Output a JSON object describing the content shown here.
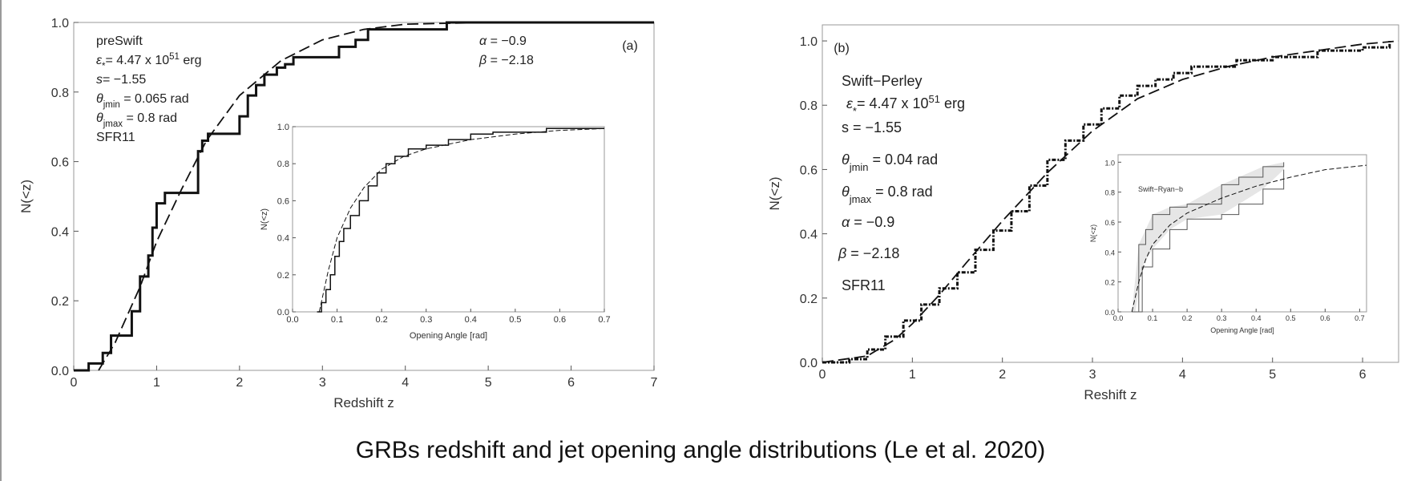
{
  "caption": "GRBs redshift and jet opening angle distributions (Le et al. 2020)",
  "colors": {
    "line": "#111111",
    "frame": "#9a9a9a",
    "band": "#e6e6e6"
  },
  "chart_data": [
    {
      "id": "panel-a",
      "type": "line",
      "panel_label": "(a)",
      "xlabel": "Redshift z",
      "ylabel": "N(<z)",
      "xlim": [
        0,
        7
      ],
      "ylim": [
        0,
        1
      ],
      "xticks": [
        "0",
        "1",
        "2",
        "3",
        "4",
        "5",
        "6",
        "7"
      ],
      "yticks": [
        "0.0",
        "0.2",
        "0.4",
        "0.6",
        "0.8",
        "1.0"
      ],
      "annotations_left": [
        "preSwift",
        "ε*= 4.47 x 10^51 erg",
        "s= −1.55",
        "θjmin = 0.065 rad",
        "θjmax = 0.8 rad",
        "SFR11"
      ],
      "annotations_right": [
        "α = −0.9",
        "β = −2.18"
      ],
      "series": [
        {
          "style": "solid-step",
          "x": [
            0.0,
            0.18,
            0.35,
            0.45,
            0.55,
            0.7,
            0.8,
            0.9,
            0.95,
            1.0,
            1.1,
            1.2,
            1.3,
            1.5,
            1.55,
            1.62,
            1.8,
            2.0,
            2.1,
            2.2,
            2.3,
            2.45,
            2.55,
            2.65,
            3.0,
            3.2,
            3.4,
            3.55,
            4.0,
            4.5,
            4.5,
            7.0
          ],
          "y": [
            0.0,
            0.02,
            0.05,
            0.1,
            0.1,
            0.17,
            0.27,
            0.33,
            0.41,
            0.48,
            0.51,
            0.51,
            0.51,
            0.63,
            0.66,
            0.68,
            0.68,
            0.73,
            0.79,
            0.82,
            0.85,
            0.87,
            0.88,
            0.9,
            0.9,
            0.93,
            0.95,
            0.98,
            0.98,
            0.98,
            1.0,
            1.0
          ]
        },
        {
          "style": "dashed",
          "x": [
            0.3,
            0.5,
            0.8,
            1.0,
            1.3,
            1.6,
            2.0,
            2.5,
            3.0,
            3.5,
            4.0,
            5.0,
            6.0,
            7.0
          ],
          "y": [
            0.0,
            0.08,
            0.24,
            0.37,
            0.52,
            0.66,
            0.79,
            0.89,
            0.95,
            0.98,
            0.995,
            1.0,
            1.0,
            1.0
          ]
        }
      ]
    },
    {
      "id": "panel-a-inset",
      "type": "line",
      "xlabel": "Opening Angle [rad]",
      "ylabel": "N(<z)",
      "xlim": [
        0,
        0.7
      ],
      "ylim": [
        0,
        1
      ],
      "xticks": [
        "0.0",
        "0.1",
        "0.2",
        "0.3",
        "0.4",
        "0.5",
        "0.6",
        "0.7"
      ],
      "yticks": [
        "0.0",
        "0.2",
        "0.4",
        "0.6",
        "0.8",
        "1.0"
      ],
      "series": [
        {
          "style": "solid-step",
          "x": [
            0.055,
            0.065,
            0.075,
            0.085,
            0.095,
            0.105,
            0.115,
            0.13,
            0.15,
            0.17,
            0.19,
            0.21,
            0.23,
            0.26,
            0.3,
            0.35,
            0.4,
            0.45,
            0.57,
            0.57,
            0.7
          ],
          "y": [
            0.0,
            0.05,
            0.12,
            0.2,
            0.3,
            0.38,
            0.45,
            0.52,
            0.6,
            0.68,
            0.75,
            0.8,
            0.84,
            0.88,
            0.9,
            0.93,
            0.96,
            0.97,
            0.97,
            0.99,
            0.99
          ]
        },
        {
          "style": "dashed",
          "x": [
            0.06,
            0.08,
            0.1,
            0.13,
            0.16,
            0.2,
            0.25,
            0.3,
            0.4,
            0.5,
            0.6,
            0.7
          ],
          "y": [
            0.0,
            0.22,
            0.4,
            0.56,
            0.67,
            0.77,
            0.84,
            0.88,
            0.93,
            0.96,
            0.98,
            0.99
          ]
        }
      ]
    },
    {
      "id": "panel-b",
      "type": "line",
      "panel_label": "(b)",
      "xlabel": "Reshift z",
      "ylabel": "N(<z)",
      "xlim": [
        0,
        6.4
      ],
      "ylim": [
        0,
        1.05
      ],
      "xticks": [
        "0",
        "1",
        "2",
        "3",
        "4",
        "5",
        "6"
      ],
      "yticks": [
        "0.0",
        "0.2",
        "0.4",
        "0.6",
        "0.8",
        "1.0"
      ],
      "annotations": [
        "Swift−Perley",
        "ε*= 4.47 x 10^51 erg",
        "s = −1.55",
        "θjmin = 0.04 rad",
        "θjmax = 0.8 rad",
        "α = −0.9",
        "β = −2.18",
        "SFR11"
      ],
      "series": [
        {
          "style": "dotted-step",
          "x": [
            0.0,
            0.3,
            0.5,
            0.7,
            0.9,
            1.1,
            1.3,
            1.5,
            1.7,
            1.9,
            2.1,
            2.3,
            2.5,
            2.7,
            2.9,
            3.1,
            3.3,
            3.5,
            3.7,
            3.9,
            4.1,
            4.3,
            4.6,
            5.0,
            5.5,
            6.0,
            6.3
          ],
          "y": [
            0.0,
            0.01,
            0.04,
            0.08,
            0.13,
            0.18,
            0.23,
            0.28,
            0.35,
            0.41,
            0.47,
            0.55,
            0.63,
            0.69,
            0.74,
            0.79,
            0.83,
            0.86,
            0.88,
            0.9,
            0.92,
            0.92,
            0.94,
            0.95,
            0.97,
            0.98,
            1.0
          ]
        },
        {
          "style": "dashed",
          "x": [
            0.0,
            0.5,
            0.8,
            1.0,
            1.3,
            1.6,
            2.0,
            2.5,
            3.0,
            3.5,
            4.0,
            4.5,
            5.0,
            5.5,
            6.0,
            6.4
          ],
          "y": [
            0.0,
            0.02,
            0.07,
            0.12,
            0.21,
            0.31,
            0.44,
            0.59,
            0.72,
            0.82,
            0.88,
            0.92,
            0.95,
            0.97,
            0.99,
            1.0
          ]
        }
      ]
    },
    {
      "id": "panel-b-inset",
      "type": "line",
      "label": "Swift−Ryan−b",
      "xlabel": "Opening Angle [rad]",
      "ylabel": "N(<z)",
      "xlim": [
        0,
        0.72
      ],
      "ylim": [
        0,
        1.05
      ],
      "xticks": [
        "0.0",
        "0.1",
        "0.2",
        "0.3",
        "0.4",
        "0.5",
        "0.6",
        "0.7"
      ],
      "yticks": [
        "0.0",
        "0.2",
        "0.4",
        "0.6",
        "0.8",
        "1.0"
      ],
      "series": [
        {
          "style": "band-upper",
          "x": [
            0.04,
            0.06,
            0.08,
            0.1,
            0.15,
            0.2,
            0.3,
            0.35,
            0.42,
            0.48
          ],
          "y": [
            0.0,
            0.45,
            0.55,
            0.65,
            0.7,
            0.72,
            0.85,
            0.9,
            0.97,
            1.0
          ]
        },
        {
          "style": "band-lower",
          "x": [
            0.05,
            0.07,
            0.1,
            0.15,
            0.2,
            0.3,
            0.35,
            0.42,
            0.48
          ],
          "y": [
            0.0,
            0.3,
            0.42,
            0.55,
            0.62,
            0.65,
            0.72,
            0.82,
            0.95
          ]
        },
        {
          "style": "dashed",
          "x": [
            0.04,
            0.06,
            0.08,
            0.1,
            0.15,
            0.2,
            0.3,
            0.4,
            0.5,
            0.6,
            0.72
          ],
          "y": [
            0.0,
            0.2,
            0.35,
            0.45,
            0.58,
            0.66,
            0.76,
            0.84,
            0.9,
            0.95,
            0.98
          ]
        }
      ]
    }
  ]
}
